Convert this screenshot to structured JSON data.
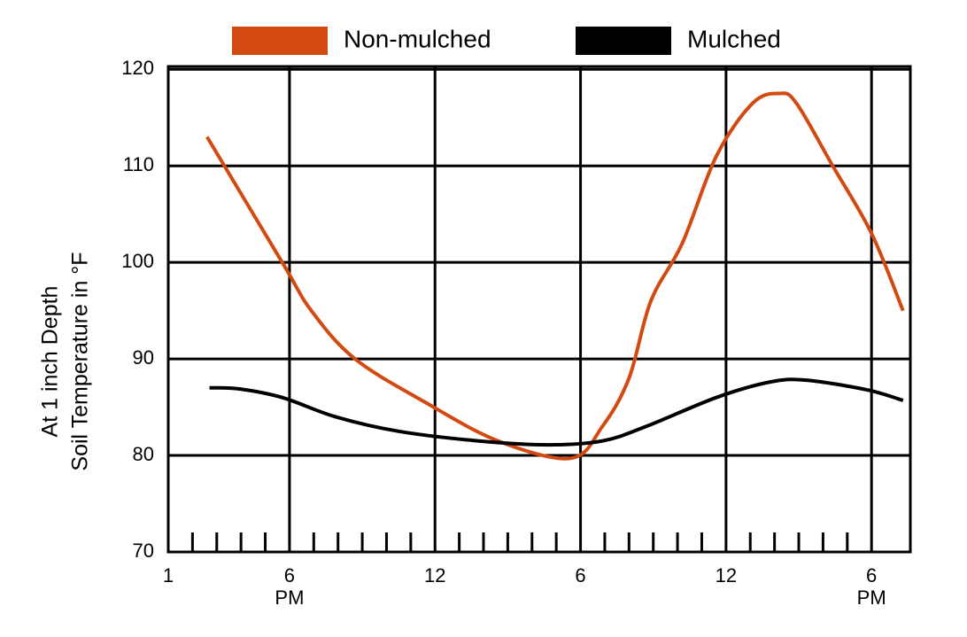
{
  "chart_data": {
    "type": "line",
    "y_label": [
      "At 1 inch Depth",
      "Soil Temperature in °F"
    ],
    "xlim": [
      13,
      43.6
    ],
    "ylim": [
      70,
      120.3
    ],
    "yticks": [
      70,
      80,
      90,
      100,
      110,
      120
    ],
    "xticks": [
      {
        "value": 13,
        "label": "1"
      },
      {
        "value": 18,
        "label": "6"
      },
      {
        "value": 24,
        "label": "12"
      },
      {
        "value": 30,
        "label": "6"
      },
      {
        "value": 36,
        "label": "12"
      },
      {
        "value": 42,
        "label": "6"
      }
    ],
    "xgrid": [
      18,
      24,
      30,
      36,
      42
    ],
    "xminorticks": [
      14,
      15,
      16,
      17,
      19,
      20,
      21,
      22,
      23,
      25,
      26,
      27,
      28,
      29,
      31,
      32,
      33,
      34,
      35,
      37,
      38,
      39,
      40,
      41
    ],
    "annotations": [
      {
        "x": 18,
        "text": "PM"
      },
      {
        "x": 42,
        "text": "PM"
      }
    ],
    "grid": true,
    "series": [
      {
        "name": "Non-mulched",
        "color": "#d24a12",
        "x": [
          14.6,
          17.7,
          18.9,
          20.7,
          23.6,
          26.6,
          29.6,
          30.9,
          32,
          32.9,
          34.2,
          35.6,
          37.1,
          38.2,
          38.9,
          40.4,
          42,
          43.3
        ],
        "values": [
          113,
          100,
          95,
          90,
          85.5,
          81.5,
          79.7,
          83,
          88,
          96,
          102,
          111,
          116.5,
          117.5,
          116.5,
          110,
          103,
          95
        ]
      },
      {
        "name": "Mulched",
        "color": "#000000",
        "x": [
          14.7,
          15.9,
          17.7,
          19.9,
          22.5,
          25.8,
          28.7,
          30.9,
          32.7,
          35.6,
          37.8,
          39.3,
          41.8,
          43.3
        ],
        "values": [
          87,
          86.9,
          86,
          84,
          82.5,
          81.5,
          81.1,
          81.5,
          83,
          86,
          87.6,
          87.8,
          86.8,
          85.7
        ]
      }
    ]
  }
}
